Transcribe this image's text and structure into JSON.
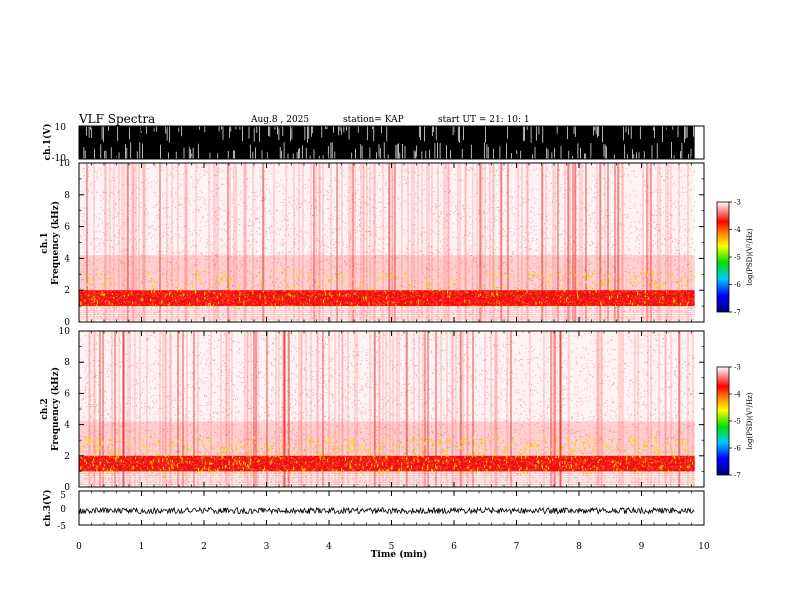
{
  "header": {
    "title": "VLF Spectra",
    "date": "Aug.8  , 2025",
    "station": "station= KAP",
    "start": "start  UT =   21: 10: 1"
  },
  "chart_data": [
    {
      "type": "line",
      "name": "ch1-waveform",
      "ylabel": "ch.1(V)",
      "ylim": [
        -10,
        10
      ],
      "yticks": [
        "10",
        "-10"
      ],
      "x_range_min": [
        0,
        9.85
      ],
      "description_note": "dense saturated waveform filling -10..10"
    },
    {
      "type": "heatmap",
      "name": "ch1-spectrogram",
      "ylabel": "ch.1\nFrequency  (kHz)",
      "ylabel_lines": [
        "ch.1",
        "Frequency  (kHz)"
      ],
      "ylim": [
        0,
        10
      ],
      "yticks": [
        "0",
        "2",
        "4",
        "6",
        "8",
        "10"
      ],
      "band_khz": [
        1,
        2
      ],
      "colorscale": {
        "min": -7,
        "max": -3,
        "ticks": [
          "-3",
          "-4",
          "-5",
          "-6",
          "-7"
        ],
        "label": "log(PSD)(V²/Hz)"
      }
    },
    {
      "type": "heatmap",
      "name": "ch2-spectrogram",
      "ylabel_lines": [
        "ch.2",
        "Frequency  (kHz)"
      ],
      "ylim": [
        0,
        10
      ],
      "yticks": [
        "0",
        "2",
        "4",
        "6",
        "8",
        "10"
      ],
      "band_khz": [
        1,
        2
      ],
      "colorscale": {
        "min": -7,
        "max": -3,
        "ticks": [
          "-3",
          "-4",
          "-5",
          "-6",
          "-7"
        ],
        "label": "log(PSD)(V²/Hz)"
      }
    },
    {
      "type": "line",
      "name": "ch3-waveform",
      "ylabel": "ch.3(V)",
      "ylim": [
        -5,
        5
      ],
      "yticks": [
        "5",
        "0",
        "-5"
      ],
      "level": -0.8
    }
  ],
  "xaxis": {
    "label": "Time  (min)",
    "xlim": [
      0,
      10
    ],
    "ticks": [
      "0",
      "1",
      "2",
      "3",
      "4",
      "5",
      "6",
      "7",
      "8",
      "9",
      "10"
    ]
  },
  "colors": {
    "spectrum_low": "#ff3a3a",
    "spectrum_mid": "#e00000",
    "spectrum_high": "#ffff00",
    "axis": "#000000"
  }
}
